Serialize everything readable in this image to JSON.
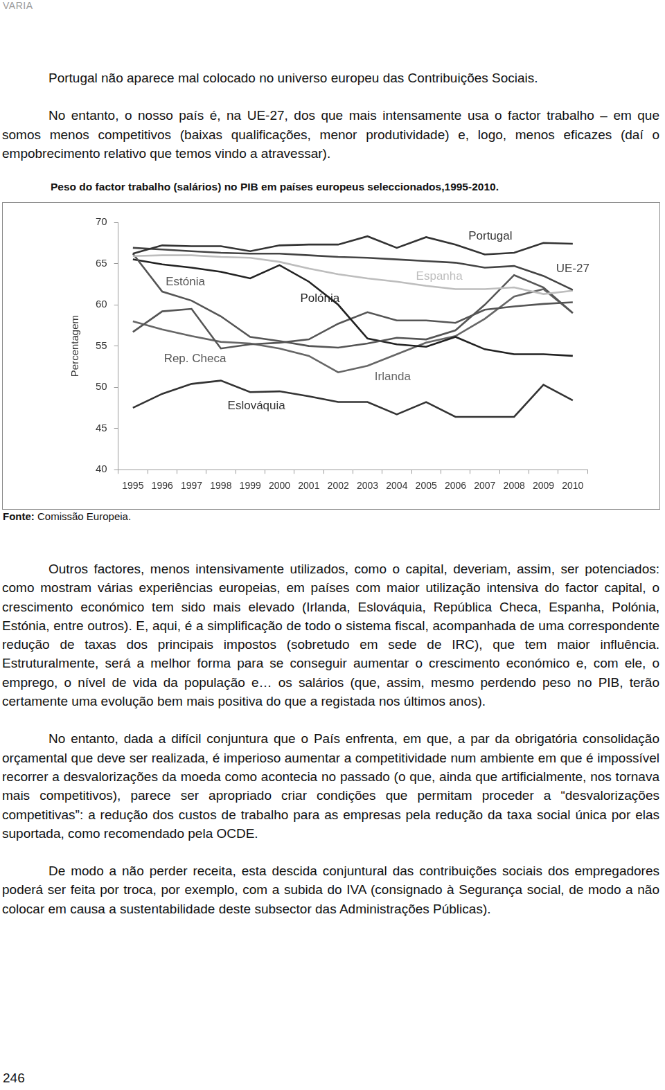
{
  "header": "VARIA",
  "paragraphs_before": [
    "Portugal não aparece mal colocado no universo europeu das Contribuições Sociais.",
    "No entanto, o nosso país é, na UE-27, dos que mais intensamente usa o factor trabalho – em que somos menos competitivos (baixas qualificações, menor produtividade) e, logo, menos eficazes (daí o empobrecimento relativo que temos vindo a atravessar)."
  ],
  "chart_data": {
    "type": "line",
    "title": "Peso do factor trabalho (salários) no PIB em países europeus seleccionados,1995-2010.",
    "y_label": "Percentagem",
    "categories": [
      "1995",
      "1996",
      "1997",
      "1998",
      "1999",
      "2000",
      "2001",
      "2002",
      "2003",
      "2004",
      "2005",
      "2006",
      "2007",
      "2008",
      "2009",
      "2010"
    ],
    "series": [
      {
        "name": "Portugal",
        "color": "#333333",
        "values": [
          66.2,
          67.2,
          67.1,
          67.1,
          66.5,
          67.2,
          67.3,
          67.3,
          68.3,
          66.9,
          68.2,
          67.3,
          66.1,
          66.3,
          67.5,
          67.4
        ]
      },
      {
        "name": "UE-27",
        "color": "#444444",
        "values": [
          66.9,
          66.7,
          66.5,
          66.3,
          66.2,
          66.2,
          66.0,
          65.8,
          65.7,
          65.5,
          65.3,
          65.1,
          64.5,
          64.7,
          63.5,
          61.8
        ]
      },
      {
        "name": "Espanha",
        "color": "#bdbdbd",
        "values": [
          65.9,
          66.0,
          66.0,
          65.8,
          65.7,
          65.2,
          64.4,
          63.7,
          63.2,
          62.8,
          62.3,
          61.9,
          61.9,
          62.1,
          61.3,
          61.7
        ]
      },
      {
        "name": "Estónia",
        "color": "#555555",
        "values": [
          66.2,
          61.6,
          60.5,
          58.6,
          56.1,
          55.6,
          55.0,
          54.8,
          55.3,
          56.0,
          55.8,
          56.9,
          60.0,
          63.6,
          62.1,
          59.0
        ]
      },
      {
        "name": "Polónia",
        "color": "#222222",
        "values": [
          65.5,
          64.9,
          64.5,
          64.0,
          63.2,
          64.8,
          62.8,
          60.0,
          55.9,
          55.2,
          54.9,
          56.1,
          54.6,
          54.0,
          54.0,
          53.8
        ]
      },
      {
        "name": "Rep. Checa",
        "color": "#555555",
        "values": [
          56.7,
          59.2,
          59.5,
          54.7,
          55.2,
          55.4,
          55.8,
          57.7,
          59.1,
          58.1,
          58.1,
          57.8,
          59.4,
          59.8,
          60.1,
          60.3
        ]
      },
      {
        "name": "Irlanda",
        "color": "#666666",
        "values": [
          58.0,
          57.0,
          56.2,
          55.5,
          55.3,
          54.7,
          53.8,
          51.8,
          52.6,
          54.0,
          55.4,
          56.2,
          58.3,
          61.0,
          61.9,
          59.0
        ]
      },
      {
        "name": "Eslováquia",
        "color": "#333333",
        "values": [
          47.5,
          49.2,
          50.4,
          50.8,
          49.4,
          49.5,
          48.9,
          48.2,
          48.2,
          46.7,
          48.2,
          46.4,
          46.4,
          46.4,
          50.3,
          48.4
        ]
      }
    ],
    "ylim": [
      40,
      70
    ],
    "yticks": [
      40,
      45,
      50,
      55,
      60,
      65,
      70
    ],
    "grid": false
  },
  "source": {
    "label": "Fonte:",
    "text": "Comissão Europeia."
  },
  "paragraphs_after": [
    "Outros factores, menos intensivamente utilizados, como o capital, deveriam, assim, ser potenciados: como mostram várias experiências europeias, em países com maior utilização intensiva do factor capital, o crescimento económico tem sido mais elevado (Irlanda, Eslováquia, República Checa, Espanha, Polónia, Estónia, entre outros). E, aqui, é a simplificação de todo o sistema fiscal, acompanhada de uma correspondente redução de taxas dos principais impostos (sobretudo em sede de IRC), que tem maior influência. Estruturalmente, será a melhor forma para se conseguir aumentar o crescimento económico e, com ele, o emprego, o nível de vida da população e… os salários (que, assim, mesmo perdendo peso no PIB, terão certamente uma evolução bem mais positiva do que a registada nos últimos anos).",
    "No entanto, dada a difícil conjuntura que o País enfrenta, em que, a par da obrigatória consolidação orçamental que deve ser realizada, é imperioso aumentar a competitividade num ambiente em que é impossível recorrer a desvalorizações da moeda como acontecia no passado (o que, ainda que artificialmente, nos tornava mais competitivos), parece ser apropriado criar condições que permitam proceder a “desvalorizações competitivas”: a redução dos custos de trabalho para as empresas pela redução da taxa social única por elas suportada, como recomendado pela OCDE.",
    "De modo a não perder receita, esta descida conjuntural das contribuições sociais dos empregadores poderá ser feita por troca, por exemplo, com a subida do IVA (consignado à Segurança social, de modo a não colocar em causa a sustentabilidade deste subsector das Administrações Públicas)."
  ],
  "page_number": "246"
}
